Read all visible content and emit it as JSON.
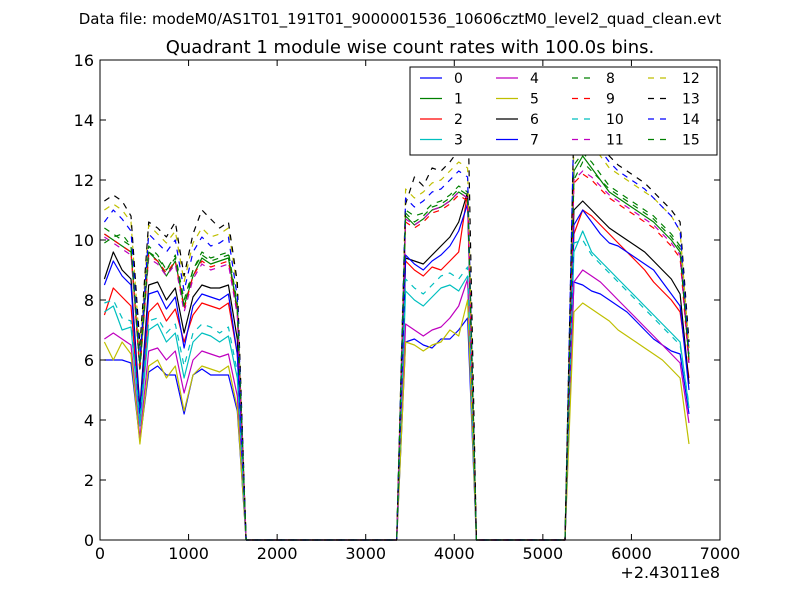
{
  "figure": {
    "suptitle": "Data file: modeM0/AS1T01_191T01_9000001536_10606cztM0_level2_quad_clean.evt"
  },
  "chart_data": {
    "type": "line",
    "title": "Quadrant 1 module wise count rates with 100.0s bins.",
    "xlabel": "",
    "ylabel": "",
    "x_offset_label": "+2.43011e8",
    "xlim": [
      0,
      7000
    ],
    "ylim": [
      0,
      16
    ],
    "xticks": [
      0,
      1000,
      2000,
      3000,
      4000,
      5000,
      6000,
      7000
    ],
    "yticks": [
      0,
      2,
      4,
      6,
      8,
      10,
      12,
      14,
      16
    ],
    "grid": false,
    "legend": {
      "placement": "top-right",
      "columns": 4
    },
    "x": [
      50,
      150,
      250,
      350,
      450,
      550,
      650,
      750,
      850,
      950,
      1050,
      1150,
      1250,
      1350,
      1450,
      1550,
      1650,
      1750,
      3350,
      3450,
      3550,
      3650,
      3750,
      3850,
      3950,
      4050,
      4150,
      4250,
      4350,
      5250,
      5350,
      5450,
      5550,
      5650,
      5750,
      5850,
      5950,
      6050,
      6150,
      6250,
      6350,
      6450,
      6550,
      6650
    ],
    "series": [
      {
        "name": "0",
        "color": "#0000ff",
        "dash": "solid",
        "values": [
          6.0,
          6.0,
          6.0,
          5.9,
          3.3,
          5.6,
          5.8,
          5.5,
          5.5,
          4.2,
          5.5,
          5.7,
          5.5,
          5.5,
          5.5,
          4.3,
          0,
          0,
          0,
          6.6,
          6.7,
          6.5,
          6.4,
          6.7,
          6.7,
          7.0,
          7.4,
          0,
          0,
          0,
          8.6,
          8.5,
          8.3,
          8.2,
          8.0,
          7.8,
          7.6,
          7.3,
          7.0,
          6.7,
          6.5,
          6.3,
          6.2,
          4.2
        ]
      },
      {
        "name": "1",
        "color": "#008000",
        "dash": "solid",
        "values": [
          10.2,
          10.0,
          9.8,
          9.6,
          5.8,
          9.6,
          9.3,
          8.8,
          9.3,
          7.8,
          8.8,
          9.4,
          9.2,
          9.3,
          9.4,
          7.7,
          0,
          0,
          0,
          10.8,
          10.5,
          10.7,
          11.0,
          11.1,
          11.3,
          11.6,
          11.4,
          0,
          0,
          0,
          12.3,
          12.8,
          12.4,
          12.0,
          11.6,
          11.4,
          11.2,
          11.0,
          10.8,
          10.6,
          10.3,
          10.0,
          9.6,
          6.0
        ]
      },
      {
        "name": "2",
        "color": "#ff0000",
        "dash": "solid",
        "values": [
          7.5,
          8.4,
          8.1,
          7.8,
          4.0,
          7.6,
          7.9,
          7.3,
          7.7,
          6.6,
          7.5,
          7.9,
          7.8,
          7.7,
          7.9,
          6.2,
          0,
          0,
          0,
          9.3,
          9.0,
          8.8,
          9.1,
          9.0,
          9.3,
          9.6,
          11.6,
          0,
          0,
          0,
          10.2,
          11.0,
          10.8,
          10.5,
          10.2,
          9.9,
          9.6,
          9.3,
          9.0,
          8.6,
          8.3,
          8.0,
          7.6,
          5.4
        ]
      },
      {
        "name": "3",
        "color": "#00bfbf",
        "dash": "solid",
        "values": [
          7.6,
          7.8,
          7.0,
          7.1,
          3.8,
          7.0,
          7.2,
          6.6,
          6.9,
          5.4,
          6.6,
          6.9,
          6.8,
          6.6,
          6.8,
          5.4,
          0,
          0,
          0,
          8.3,
          8.0,
          7.8,
          8.1,
          8.4,
          8.5,
          8.3,
          8.8,
          0,
          0,
          0,
          9.6,
          10.3,
          9.6,
          9.3,
          9.0,
          8.7,
          8.4,
          8.1,
          7.8,
          7.5,
          7.2,
          6.9,
          6.6,
          4.4
        ]
      },
      {
        "name": "4",
        "color": "#bf00bf",
        "dash": "solid",
        "values": [
          6.7,
          6.9,
          6.7,
          6.5,
          3.4,
          6.3,
          6.4,
          6.0,
          6.3,
          4.9,
          6.0,
          6.3,
          6.2,
          6.1,
          6.2,
          4.8,
          0,
          0,
          0,
          7.2,
          7.0,
          6.8,
          7.0,
          7.1,
          7.4,
          7.8,
          8.7,
          0,
          0,
          0,
          8.6,
          9.0,
          8.8,
          8.6,
          8.3,
          8.0,
          7.7,
          7.4,
          7.1,
          6.8,
          6.5,
          6.2,
          5.9,
          3.9
        ]
      },
      {
        "name": "5",
        "color": "#bfbf00",
        "dash": "solid",
        "values": [
          6.6,
          6.0,
          6.6,
          6.2,
          3.2,
          5.8,
          6.0,
          5.4,
          5.8,
          4.3,
          5.5,
          5.8,
          5.7,
          5.6,
          5.8,
          4.4,
          0,
          0,
          0,
          6.6,
          6.5,
          6.3,
          6.5,
          6.6,
          7.0,
          6.8,
          8.0,
          0,
          0,
          0,
          7.6,
          7.9,
          7.7,
          7.5,
          7.3,
          7.0,
          6.8,
          6.6,
          6.4,
          6.2,
          6.0,
          5.7,
          5.4,
          3.2
        ]
      },
      {
        "name": "6",
        "color": "#000000",
        "dash": "solid",
        "values": [
          8.7,
          9.6,
          9.0,
          8.7,
          4.4,
          8.5,
          8.6,
          8.0,
          8.4,
          6.9,
          8.1,
          8.5,
          8.4,
          8.4,
          8.5,
          6.7,
          0,
          0,
          0,
          9.4,
          9.3,
          9.2,
          9.5,
          9.8,
          10.1,
          10.6,
          11.6,
          0,
          0,
          0,
          11.0,
          11.3,
          11.0,
          10.7,
          10.4,
          10.2,
          10.0,
          9.8,
          9.6,
          9.3,
          9.0,
          8.7,
          8.2,
          5.2
        ]
      },
      {
        "name": "7",
        "color": "#0000ff",
        "dash": "solid",
        "values": [
          8.5,
          9.3,
          8.8,
          8.5,
          4.2,
          8.2,
          8.3,
          7.7,
          8.1,
          6.4,
          7.8,
          8.2,
          8.1,
          8.0,
          8.2,
          6.2,
          0,
          0,
          0,
          9.5,
          9.2,
          9.0,
          9.3,
          9.5,
          9.8,
          10.3,
          11.2,
          0,
          0,
          0,
          10.5,
          11.0,
          10.6,
          10.2,
          9.9,
          9.8,
          9.6,
          9.4,
          9.2,
          9.0,
          8.6,
          8.2,
          7.8,
          5.0
        ]
      },
      {
        "name": "8",
        "color": "#008000",
        "dash": "dashed",
        "values": [
          10.4,
          10.2,
          10.0,
          9.8,
          5.9,
          9.8,
          9.5,
          9.0,
          9.5,
          8.0,
          9.0,
          9.6,
          9.4,
          9.5,
          9.6,
          7.9,
          0,
          0,
          0,
          11.0,
          10.8,
          10.9,
          11.2,
          11.3,
          11.5,
          11.8,
          11.6,
          0,
          0,
          0,
          12.5,
          12.9,
          12.6,
          12.2,
          11.8,
          11.6,
          11.4,
          11.2,
          11.0,
          10.8,
          10.5,
          10.2,
          9.8,
          6.1
        ]
      },
      {
        "name": "9",
        "color": "#ff0000",
        "dash": "dashed",
        "values": [
          10.2,
          10.0,
          9.8,
          9.6,
          5.6,
          9.5,
          9.3,
          8.9,
          9.3,
          7.7,
          8.8,
          9.3,
          9.1,
          9.2,
          9.3,
          7.6,
          0,
          0,
          0,
          10.6,
          10.4,
          10.6,
          10.9,
          11.0,
          11.2,
          11.5,
          11.3,
          0,
          0,
          0,
          11.9,
          12.2,
          12.0,
          11.7,
          11.4,
          11.2,
          11.0,
          10.8,
          10.6,
          10.4,
          10.1,
          9.8,
          9.4,
          5.8
        ]
      },
      {
        "name": "10",
        "color": "#00bfbf",
        "dash": "dashed",
        "values": [
          7.9,
          8.0,
          7.4,
          7.3,
          4.0,
          7.3,
          7.4,
          6.9,
          7.2,
          5.8,
          6.9,
          7.2,
          7.1,
          6.9,
          7.1,
          5.6,
          0,
          0,
          0,
          8.7,
          8.4,
          8.2,
          8.5,
          8.8,
          8.9,
          8.7,
          9.1,
          0,
          0,
          0,
          9.9,
          10.0,
          9.5,
          9.2,
          8.9,
          8.6,
          8.3,
          8.0,
          7.7,
          7.4,
          7.1,
          6.8,
          6.5,
          4.5
        ]
      },
      {
        "name": "11",
        "color": "#bf00bf",
        "dash": "dashed",
        "values": [
          10.1,
          9.9,
          9.7,
          9.5,
          5.7,
          9.4,
          9.2,
          8.8,
          9.2,
          7.6,
          8.7,
          9.2,
          9.0,
          9.1,
          9.2,
          7.5,
          0,
          0,
          0,
          10.7,
          10.5,
          10.7,
          11.0,
          11.1,
          11.3,
          11.6,
          11.4,
          0,
          0,
          0,
          12.0,
          12.3,
          12.1,
          11.8,
          11.5,
          11.3,
          11.1,
          10.9,
          10.7,
          10.5,
          10.2,
          9.9,
          9.5,
          5.9
        ]
      },
      {
        "name": "12",
        "color": "#bfbf00",
        "dash": "dashed",
        "values": [
          11.0,
          11.2,
          11.0,
          10.6,
          6.3,
          10.5,
          10.2,
          9.9,
          10.3,
          8.6,
          9.9,
          10.4,
          10.1,
          10.2,
          10.4,
          8.4,
          0,
          0,
          0,
          11.7,
          11.4,
          11.6,
          11.9,
          12.0,
          12.3,
          12.6,
          12.4,
          0,
          0,
          0,
          13.2,
          13.6,
          13.2,
          12.8,
          12.4,
          12.2,
          12.0,
          11.8,
          11.6,
          11.4,
          11.1,
          10.8,
          10.3,
          6.4
        ]
      },
      {
        "name": "13",
        "color": "#000000",
        "dash": "dashed",
        "values": [
          11.3,
          11.5,
          11.3,
          10.8,
          6.5,
          10.6,
          10.4,
          10.1,
          10.6,
          8.8,
          10.2,
          11.0,
          10.7,
          10.4,
          10.6,
          8.6,
          0,
          0,
          0,
          11.2,
          12.1,
          11.8,
          12.4,
          12.3,
          12.6,
          13.0,
          14.8,
          0,
          0,
          0,
          13.9,
          13.8,
          13.5,
          13.1,
          12.8,
          12.5,
          12.3,
          12.1,
          11.9,
          11.6,
          11.3,
          11.0,
          10.6,
          6.6
        ]
      },
      {
        "name": "14",
        "color": "#0000ff",
        "dash": "dashed",
        "values": [
          10.6,
          11.0,
          10.7,
          10.3,
          6.0,
          10.2,
          9.9,
          9.6,
          10.0,
          8.3,
          9.6,
          10.1,
          9.8,
          9.9,
          10.1,
          8.1,
          0,
          0,
          0,
          11.4,
          11.1,
          11.3,
          11.6,
          11.7,
          12.0,
          12.3,
          12.1,
          0,
          0,
          0,
          14.0,
          13.9,
          13.4,
          13.0,
          12.6,
          12.3,
          12.1,
          11.9,
          11.7,
          11.4,
          11.1,
          10.8,
          10.3,
          6.2
        ]
      },
      {
        "name": "15",
        "color": "#008000",
        "dash": "dashed",
        "values": [
          9.9,
          10.1,
          10.2,
          9.8,
          5.7,
          9.6,
          9.4,
          9.0,
          9.4,
          7.8,
          9.0,
          9.5,
          9.3,
          9.4,
          9.5,
          7.7,
          0,
          0,
          0,
          10.9,
          10.6,
          10.8,
          11.1,
          11.2,
          11.4,
          11.7,
          11.5,
          0,
          0,
          0,
          12.0,
          12.6,
          12.3,
          12.0,
          11.7,
          11.5,
          11.3,
          11.1,
          10.9,
          10.7,
          10.4,
          10.1,
          9.7,
          6.0
        ]
      }
    ]
  }
}
